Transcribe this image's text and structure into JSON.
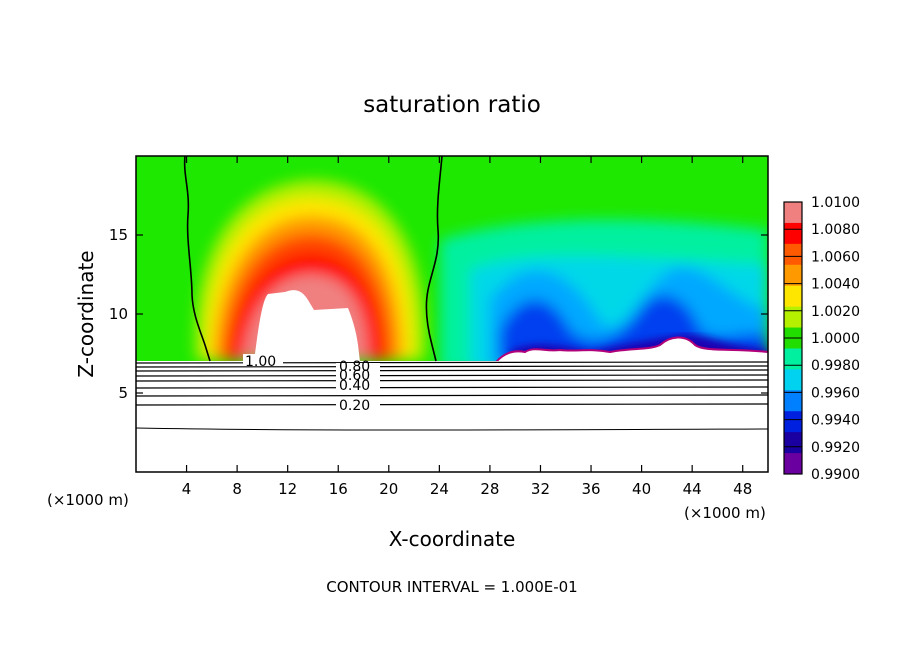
{
  "chart_data": {
    "type": "heatmap",
    "title": "saturation ratio",
    "xlabel": "X-coordinate",
    "ylabel": "Z-coordinate",
    "x_unit_left": "(×1000 m)",
    "x_unit_right": "(×1000 m)",
    "footer": "CONTOUR INTERVAL = 1.000E-01",
    "xlim": [
      0,
      50
    ],
    "ylim": [
      0,
      20
    ],
    "x_ticks": [
      4,
      8,
      12,
      16,
      20,
      24,
      28,
      32,
      36,
      40,
      44,
      48
    ],
    "y_ticks": [
      5,
      10,
      15
    ],
    "grid": false,
    "legend_position": "right",
    "colorbar": {
      "levels": [
        "1.0100",
        "1.0080",
        "1.0060",
        "1.0040",
        "1.0020",
        "1.0000",
        "0.9980",
        "0.9960",
        "0.9940",
        "0.9920",
        "0.9900"
      ],
      "colors": [
        "#f08080",
        "#ff0000",
        "#ff5a00",
        "#ff9900",
        "#ffe600",
        "#b4f000",
        "#22dd00",
        "#00f0a0",
        "#00d2f0",
        "#0080ff",
        "#0020e0",
        "#1a00a0",
        "#6a00a0"
      ]
    },
    "contour_labels": [
      {
        "label": "1.00",
        "x": 10,
        "z": 7.1
      },
      {
        "label": "0.80",
        "x": 17,
        "z": 6.8
      },
      {
        "label": "0.60",
        "x": 17,
        "z": 6.3
      },
      {
        "label": "0.40",
        "x": 17,
        "z": 5.6
      },
      {
        "label": "0.20",
        "x": 17,
        "z": 4.2
      }
    ],
    "lower_contour_levels_z": [
      7.0,
      6.75,
      6.5,
      6.25,
      6.0,
      5.7,
      5.3,
      4.8,
      4.2,
      2.8
    ],
    "cloud_boundary_s1_left": [
      [
        3.7,
        20
      ],
      [
        4.0,
        18
      ],
      [
        4.2,
        15
      ],
      [
        4.5,
        12
      ],
      [
        5.0,
        9
      ],
      [
        5.8,
        7.1
      ]
    ],
    "cloud_boundary_s1_right": [
      [
        24.2,
        20
      ],
      [
        24.0,
        18
      ],
      [
        23.6,
        15
      ],
      [
        23.2,
        12
      ],
      [
        23.4,
        9
      ],
      [
        23.7,
        7.1
      ]
    ]
  }
}
